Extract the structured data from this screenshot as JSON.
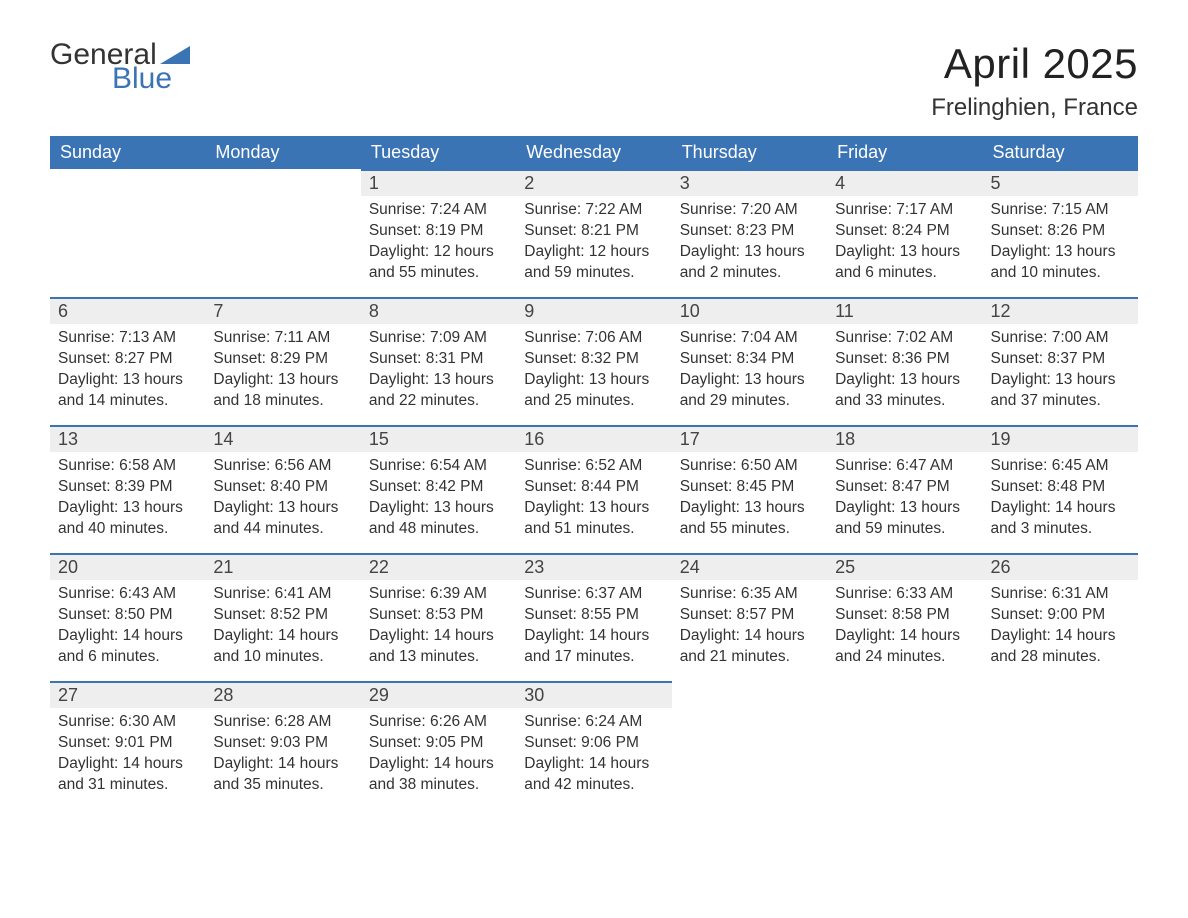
{
  "logo": {
    "word1": "General",
    "word2": "Blue"
  },
  "title": "April 2025",
  "location": "Frelinghien, France",
  "colors": {
    "header_bg": "#3b74b5",
    "header_text": "#ffffff",
    "daybar_bg": "#eeeeee",
    "daybar_border": "#3b74b5",
    "body_bg": "#ffffff",
    "text": "#333333"
  },
  "weekdays": [
    "Sunday",
    "Monday",
    "Tuesday",
    "Wednesday",
    "Thursday",
    "Friday",
    "Saturday"
  ],
  "weeks": [
    [
      null,
      null,
      {
        "n": "1",
        "sr": "Sunrise: 7:24 AM",
        "ss": "Sunset: 8:19 PM",
        "d1": "Daylight: 12 hours",
        "d2": "and 55 minutes."
      },
      {
        "n": "2",
        "sr": "Sunrise: 7:22 AM",
        "ss": "Sunset: 8:21 PM",
        "d1": "Daylight: 12 hours",
        "d2": "and 59 minutes."
      },
      {
        "n": "3",
        "sr": "Sunrise: 7:20 AM",
        "ss": "Sunset: 8:23 PM",
        "d1": "Daylight: 13 hours",
        "d2": "and 2 minutes."
      },
      {
        "n": "4",
        "sr": "Sunrise: 7:17 AM",
        "ss": "Sunset: 8:24 PM",
        "d1": "Daylight: 13 hours",
        "d2": "and 6 minutes."
      },
      {
        "n": "5",
        "sr": "Sunrise: 7:15 AM",
        "ss": "Sunset: 8:26 PM",
        "d1": "Daylight: 13 hours",
        "d2": "and 10 minutes."
      }
    ],
    [
      {
        "n": "6",
        "sr": "Sunrise: 7:13 AM",
        "ss": "Sunset: 8:27 PM",
        "d1": "Daylight: 13 hours",
        "d2": "and 14 minutes."
      },
      {
        "n": "7",
        "sr": "Sunrise: 7:11 AM",
        "ss": "Sunset: 8:29 PM",
        "d1": "Daylight: 13 hours",
        "d2": "and 18 minutes."
      },
      {
        "n": "8",
        "sr": "Sunrise: 7:09 AM",
        "ss": "Sunset: 8:31 PM",
        "d1": "Daylight: 13 hours",
        "d2": "and 22 minutes."
      },
      {
        "n": "9",
        "sr": "Sunrise: 7:06 AM",
        "ss": "Sunset: 8:32 PM",
        "d1": "Daylight: 13 hours",
        "d2": "and 25 minutes."
      },
      {
        "n": "10",
        "sr": "Sunrise: 7:04 AM",
        "ss": "Sunset: 8:34 PM",
        "d1": "Daylight: 13 hours",
        "d2": "and 29 minutes."
      },
      {
        "n": "11",
        "sr": "Sunrise: 7:02 AM",
        "ss": "Sunset: 8:36 PM",
        "d1": "Daylight: 13 hours",
        "d2": "and 33 minutes."
      },
      {
        "n": "12",
        "sr": "Sunrise: 7:00 AM",
        "ss": "Sunset: 8:37 PM",
        "d1": "Daylight: 13 hours",
        "d2": "and 37 minutes."
      }
    ],
    [
      {
        "n": "13",
        "sr": "Sunrise: 6:58 AM",
        "ss": "Sunset: 8:39 PM",
        "d1": "Daylight: 13 hours",
        "d2": "and 40 minutes."
      },
      {
        "n": "14",
        "sr": "Sunrise: 6:56 AM",
        "ss": "Sunset: 8:40 PM",
        "d1": "Daylight: 13 hours",
        "d2": "and 44 minutes."
      },
      {
        "n": "15",
        "sr": "Sunrise: 6:54 AM",
        "ss": "Sunset: 8:42 PM",
        "d1": "Daylight: 13 hours",
        "d2": "and 48 minutes."
      },
      {
        "n": "16",
        "sr": "Sunrise: 6:52 AM",
        "ss": "Sunset: 8:44 PM",
        "d1": "Daylight: 13 hours",
        "d2": "and 51 minutes."
      },
      {
        "n": "17",
        "sr": "Sunrise: 6:50 AM",
        "ss": "Sunset: 8:45 PM",
        "d1": "Daylight: 13 hours",
        "d2": "and 55 minutes."
      },
      {
        "n": "18",
        "sr": "Sunrise: 6:47 AM",
        "ss": "Sunset: 8:47 PM",
        "d1": "Daylight: 13 hours",
        "d2": "and 59 minutes."
      },
      {
        "n": "19",
        "sr": "Sunrise: 6:45 AM",
        "ss": "Sunset: 8:48 PM",
        "d1": "Daylight: 14 hours",
        "d2": "and 3 minutes."
      }
    ],
    [
      {
        "n": "20",
        "sr": "Sunrise: 6:43 AM",
        "ss": "Sunset: 8:50 PM",
        "d1": "Daylight: 14 hours",
        "d2": "and 6 minutes."
      },
      {
        "n": "21",
        "sr": "Sunrise: 6:41 AM",
        "ss": "Sunset: 8:52 PM",
        "d1": "Daylight: 14 hours",
        "d2": "and 10 minutes."
      },
      {
        "n": "22",
        "sr": "Sunrise: 6:39 AM",
        "ss": "Sunset: 8:53 PM",
        "d1": "Daylight: 14 hours",
        "d2": "and 13 minutes."
      },
      {
        "n": "23",
        "sr": "Sunrise: 6:37 AM",
        "ss": "Sunset: 8:55 PM",
        "d1": "Daylight: 14 hours",
        "d2": "and 17 minutes."
      },
      {
        "n": "24",
        "sr": "Sunrise: 6:35 AM",
        "ss": "Sunset: 8:57 PM",
        "d1": "Daylight: 14 hours",
        "d2": "and 21 minutes."
      },
      {
        "n": "25",
        "sr": "Sunrise: 6:33 AM",
        "ss": "Sunset: 8:58 PM",
        "d1": "Daylight: 14 hours",
        "d2": "and 24 minutes."
      },
      {
        "n": "26",
        "sr": "Sunrise: 6:31 AM",
        "ss": "Sunset: 9:00 PM",
        "d1": "Daylight: 14 hours",
        "d2": "and 28 minutes."
      }
    ],
    [
      {
        "n": "27",
        "sr": "Sunrise: 6:30 AM",
        "ss": "Sunset: 9:01 PM",
        "d1": "Daylight: 14 hours",
        "d2": "and 31 minutes."
      },
      {
        "n": "28",
        "sr": "Sunrise: 6:28 AM",
        "ss": "Sunset: 9:03 PM",
        "d1": "Daylight: 14 hours",
        "d2": "and 35 minutes."
      },
      {
        "n": "29",
        "sr": "Sunrise: 6:26 AM",
        "ss": "Sunset: 9:05 PM",
        "d1": "Daylight: 14 hours",
        "d2": "and 38 minutes."
      },
      {
        "n": "30",
        "sr": "Sunrise: 6:24 AM",
        "ss": "Sunset: 9:06 PM",
        "d1": "Daylight: 14 hours",
        "d2": "and 42 minutes."
      },
      null,
      null,
      null
    ]
  ]
}
